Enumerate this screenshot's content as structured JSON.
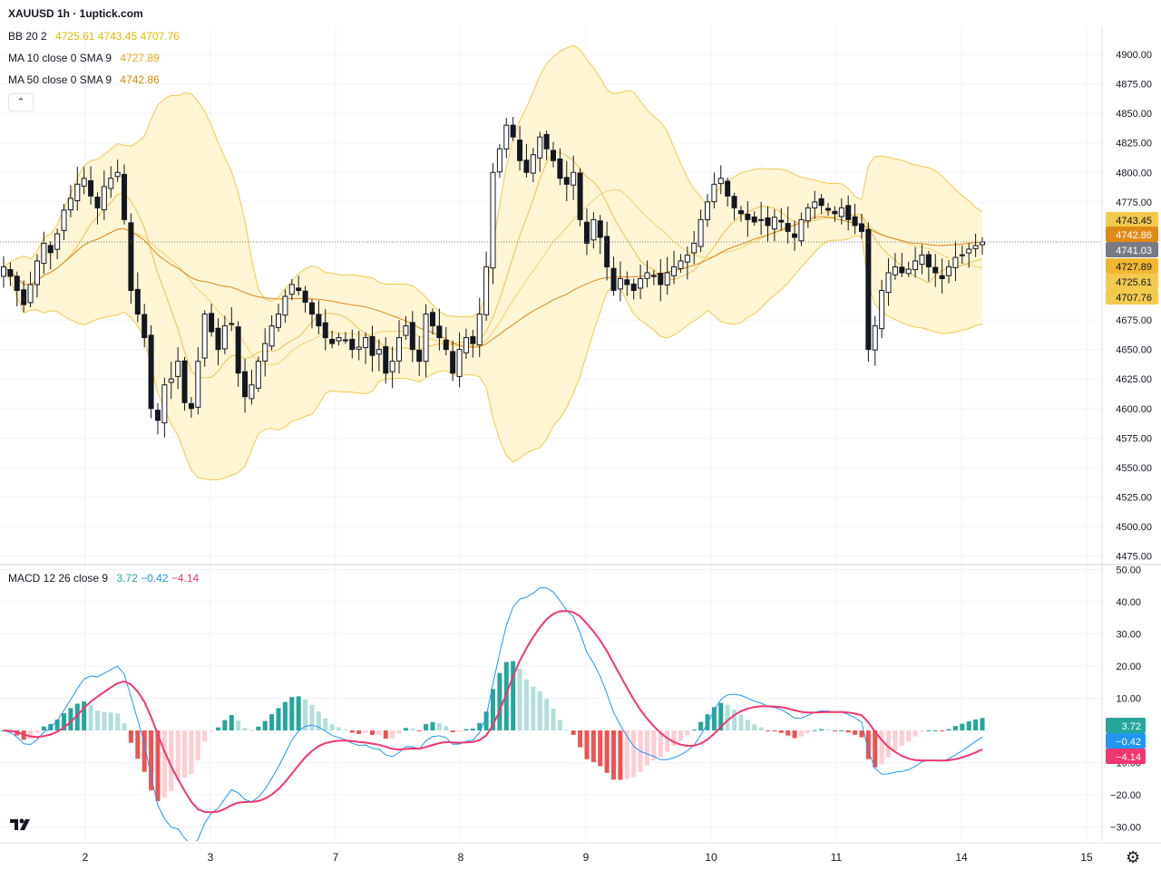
{
  "header": {
    "title": "XAUUSD 1h · 1uptick.com",
    "legends": [
      {
        "label": "BB 20 2",
        "values": [
          "4725.61",
          "4743.45",
          "4707.76"
        ],
        "color": "#e5b800"
      },
      {
        "label": "MA 10 close 0 SMA 9",
        "values": [
          "4727.89"
        ],
        "color": "#e6a817"
      },
      {
        "label": "MA 50 close 0 SMA 9",
        "values": [
          "4742.86"
        ],
        "color": "#d68a06"
      }
    ],
    "collapse_icon": "chevron-up-icon"
  },
  "macd_legend": {
    "label": "MACD 12 26 close 9",
    "values": [
      "3.72",
      "−0.42",
      "−4.14"
    ],
    "colors": [
      "#26a69a",
      "#2196f3",
      "#f23670"
    ]
  },
  "colors": {
    "up": "#26a69a",
    "down": "#ef5350",
    "candle": "#131722",
    "bb": "#f2c94c",
    "bb_fill": "#fff6d6",
    "ma10": "#f0c24a",
    "ma50": "#e08a16",
    "macd": "#2196f3",
    "signal": "#f23670",
    "hist_up": "#26a69a",
    "hist_up_light": "#b2dfdb",
    "hist_down": "#ef5350",
    "hist_down_light": "#ffcdd2"
  },
  "chart_data": [
    {
      "type": "candlestick",
      "title": "XAUUSD 1h",
      "ylim": [
        4475,
        4925
      ],
      "y_ticks": [
        "4900.00",
        "4875.00",
        "4850.00",
        "4825.00",
        "4800.00",
        "4775.00",
        "4675.00",
        "4650.00",
        "4625.00",
        "4600.00",
        "4575.00",
        "4550.00",
        "4525.00",
        "4500.00",
        "4475.00"
      ],
      "x_ticks": [
        "2",
        "3",
        "7",
        "8",
        "9",
        "10",
        "11",
        "14",
        "15"
      ],
      "price_labels": [
        {
          "text": "4743.45",
          "value": 4743.45,
          "bg": "#f2c94c",
          "fg": "#131722"
        },
        {
          "text": "4742.86",
          "value": 4742.86,
          "bg": "#e08a16",
          "fg": "#ffffff"
        },
        {
          "text": "4741.03",
          "value": 4741.03,
          "bg": "#787b86",
          "fg": "#ffffff"
        },
        {
          "text": "4727.89",
          "value": 4727.89,
          "bg": "#f2b630",
          "fg": "#131722"
        },
        {
          "text": "4725.61",
          "value": 4725.61,
          "bg": "#f2c94c",
          "fg": "#131722"
        },
        {
          "text": "4707.76",
          "value": 4707.76,
          "bg": "#f2c94c",
          "fg": "#131722"
        }
      ],
      "last_price": 4741.03,
      "close_path": [
        4720,
        4712,
        4700,
        4688,
        4705,
        4725,
        4740,
        4732,
        4748,
        4768,
        4778,
        4790,
        4795,
        4780,
        4770,
        4788,
        4795,
        4800,
        4760,
        4700,
        4680,
        4660,
        4600,
        4590,
        4620,
        4625,
        4640,
        4605,
        4600,
        4640,
        4680,
        4665,
        4650,
        4670,
        4672,
        4630,
        4610,
        4620,
        4640,
        4655,
        4670,
        4680,
        4695,
        4705,
        4700,
        4690,
        4680,
        4670,
        4660,
        4655,
        4660,
        4658,
        4650,
        4652,
        4660,
        4645,
        4650,
        4630,
        4640,
        4660,
        4670,
        4650,
        4640,
        4680,
        4670,
        4660,
        4650,
        4630,
        4650,
        4660,
        4655,
        4680,
        4720,
        4800,
        4820,
        4840,
        4830,
        4810,
        4800,
        4815,
        4830,
        4820,
        4810,
        4795,
        4790,
        4800,
        4760,
        4740,
        4760,
        4745,
        4720,
        4700,
        4710,
        4705,
        4700,
        4710,
        4715,
        4712,
        4705,
        4715,
        4720,
        4725,
        4730,
        4740,
        4760,
        4775,
        4790,
        4795,
        4780,
        4770,
        4765,
        4760,
        4758,
        4760,
        4755,
        4762,
        4758,
        4750,
        4745,
        4760,
        4770,
        4775,
        4772,
        4768,
        4765,
        4770,
        4760,
        4755,
        4750,
        4650,
        4670,
        4700,
        4715,
        4720,
        4715,
        4718,
        4725,
        4730,
        4720,
        4715,
        4710,
        4720,
        4728,
        4730,
        4735,
        4738,
        4741.03
      ],
      "bb_ma_period": 20,
      "bb_stdev": 2,
      "ma10_period": 10,
      "ma50_period": 50
    },
    {
      "type": "macd",
      "title": "MACD 12 26 close 9",
      "ylim": [
        -33,
        52
      ],
      "y_ticks": [
        "50.00",
        "40.00",
        "30.00",
        "20.00",
        "10.00",
        "−10.00",
        "−20.00",
        "−30.00"
      ],
      "value_labels": [
        {
          "text": "3.72",
          "value": 3.72,
          "bg": "#26a69a"
        },
        {
          "text": "−0.42",
          "value": -0.42,
          "bg": "#2196f3"
        },
        {
          "text": "−4.14",
          "value": -4.14,
          "bg": "#f23670"
        }
      ]
    }
  ]
}
